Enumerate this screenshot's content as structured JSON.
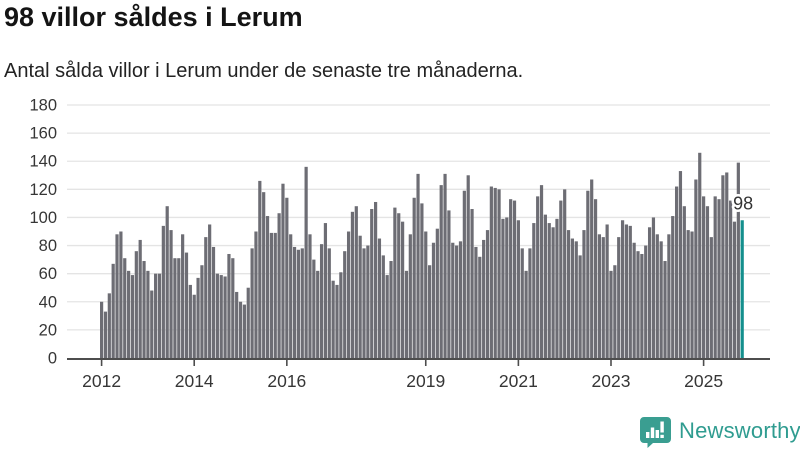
{
  "header": {
    "title": "98 villor såldes i Lerum",
    "subtitle": "Antal sålda villor i Lerum under de senaste tre månaderna."
  },
  "colors": {
    "bar": "#6d6d74",
    "highlight_bar": "#148f8d",
    "gridline": "#e4e4e4",
    "axis": "#4d4d4d",
    "tick_text": "#363636",
    "annotation_text": "#333333",
    "brand_teal": "#2f9c90"
  },
  "chart_data": {
    "type": "bar",
    "title": "98 villor såldes i Lerum",
    "subtitle": "Antal sålda villor i Lerum under de senaste tre månaderna.",
    "xlabel": "",
    "ylabel": "",
    "ylim": [
      0,
      180
    ],
    "y_ticks": [
      0,
      20,
      40,
      60,
      80,
      100,
      120,
      140,
      160,
      180
    ],
    "grid": "horizontal",
    "legend": "none",
    "x_range": {
      "start": "2012-01",
      "end": "2025-11",
      "frequency": "monthly"
    },
    "x_tick_labels": [
      "2012",
      "2014",
      "2016",
      "2019",
      "2021",
      "2023",
      "2025"
    ],
    "x_tick_indices": [
      0,
      24,
      48,
      84,
      108,
      132,
      156
    ],
    "values": [
      40,
      33,
      46,
      67,
      88,
      90,
      71,
      62,
      59,
      76,
      84,
      69,
      62,
      48,
      60,
      60,
      94,
      108,
      91,
      71,
      71,
      88,
      75,
      52,
      45,
      57,
      66,
      86,
      95,
      79,
      60,
      59,
      58,
      74,
      71,
      47,
      40,
      38,
      50,
      78,
      90,
      126,
      118,
      101,
      89,
      89,
      103,
      124,
      114,
      88,
      79,
      77,
      78,
      136,
      88,
      70,
      62,
      81,
      96,
      78,
      55,
      52,
      61,
      76,
      90,
      104,
      108,
      87,
      78,
      80,
      106,
      111,
      85,
      73,
      59,
      69,
      107,
      103,
      97,
      62,
      88,
      114,
      131,
      110,
      90,
      66,
      82,
      92,
      123,
      131,
      105,
      82,
      80,
      83,
      119,
      130,
      106,
      79,
      72,
      84,
      91,
      122,
      121,
      120,
      99,
      100,
      113,
      112,
      98,
      78,
      62,
      78,
      96,
      115,
      123,
      102,
      96,
      93,
      99,
      112,
      120,
      91,
      85,
      83,
      73,
      91,
      119,
      127,
      113,
      88,
      86,
      95,
      62,
      66,
      86,
      98,
      95,
      94,
      82,
      76,
      74,
      80,
      93,
      100,
      88,
      83,
      69,
      88,
      101,
      122,
      133,
      108,
      91,
      90,
      127,
      146,
      115,
      108,
      86,
      115,
      113,
      130,
      132,
      112,
      97,
      139,
      98
    ],
    "highlight_index": 166,
    "annotation": {
      "text": "98",
      "value": 98
    }
  },
  "footer": {
    "brand": "Newsworthy",
    "logo_icon": "bar-chart-speech-bubble-icon"
  }
}
